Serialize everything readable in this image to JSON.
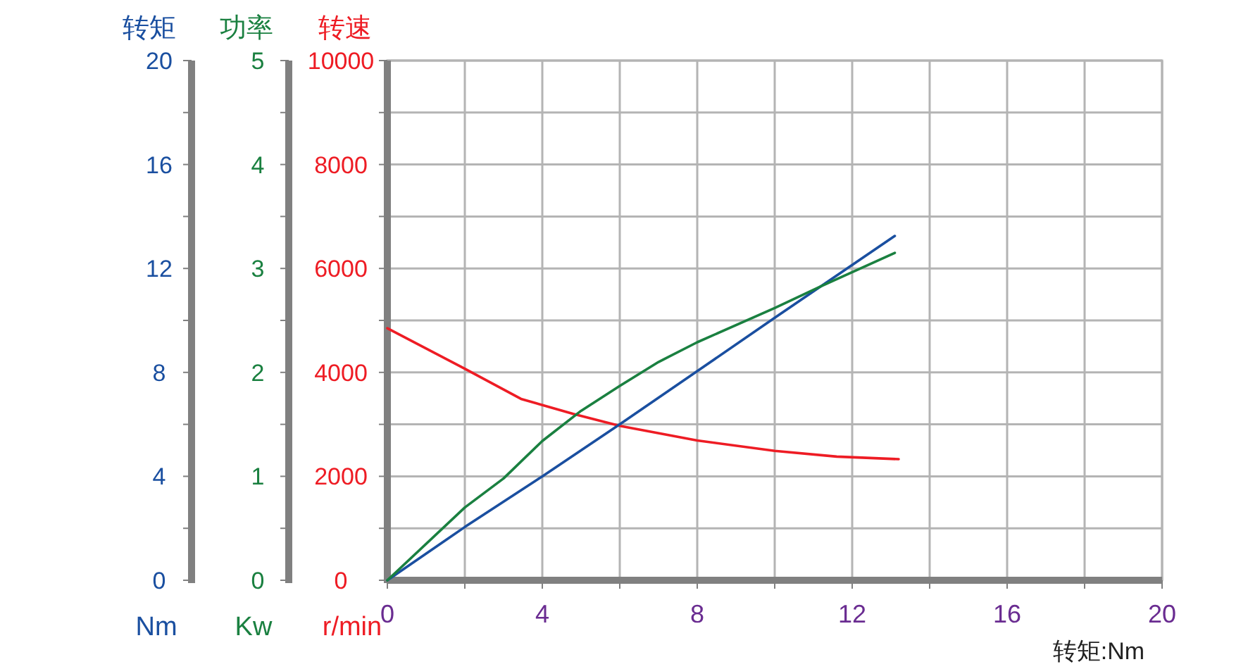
{
  "chart_data": {
    "type": "line",
    "xlabel": "转矩:Nm",
    "ylabel": "功率",
    "y2label": "转速",
    "y3label": "转矩",
    "annotations": [
      "Nm",
      "Kw",
      "r/min"
    ],
    "xlim": [
      0,
      20
    ],
    "xticks": [
      0,
      {
        "value": 2,
        "label": null
      },
      4,
      {
        "value": 6,
        "label": null
      },
      8,
      {
        "value": 10,
        "label": null
      },
      12,
      {
        "value": 14,
        "label": null
      },
      16,
      {
        "value": 18,
        "label": null
      },
      20
    ],
    "ylim": [
      0,
      5
    ],
    "yticks": [
      0,
      {
        "value": 0.5,
        "label": null
      },
      1,
      {
        "value": 1.5,
        "label": null
      },
      2,
      {
        "value": 2.5,
        "label": null
      },
      3,
      {
        "value": 3.5,
        "label": null
      },
      4,
      {
        "value": 4.5,
        "label": null
      },
      5
    ],
    "y2lim": [
      0,
      10000
    ],
    "y2ticks": [
      0,
      {
        "value": 1000,
        "label": null
      },
      2000,
      {
        "value": 3000,
        "label": null
      },
      4000,
      {
        "value": 5000,
        "label": null
      },
      6000,
      {
        "value": 7000,
        "label": null
      },
      8000,
      {
        "value": 9000,
        "label": null
      },
      10000
    ],
    "y3lim": [
      0,
      20
    ],
    "y3ticks": [
      0,
      {
        "value": 2,
        "label": null
      },
      4,
      {
        "value": 6,
        "label": null
      },
      8,
      {
        "value": 10,
        "label": null
      },
      12,
      {
        "value": 14,
        "label": null
      },
      16,
      {
        "value": 18,
        "label": null
      },
      20
    ],
    "grid": true,
    "marker": "none",
    "line_style": "solid",
    "series": [
      {
        "color": "#ee1c24",
        "axis": "y2",
        "x": [
          0,
          2,
          3.45,
          4.8,
          6,
          8,
          10,
          11.6,
          13.2
        ],
        "values": [
          4850,
          4070,
          3490,
          3200,
          2970,
          2690,
          2490,
          2380,
          2330
        ]
      },
      {
        "color": "#1a4fa0",
        "axis": "y3",
        "x": [
          0,
          2,
          4,
          6,
          8,
          10,
          13.1
        ],
        "values": [
          0,
          2.05,
          4,
          6,
          8.05,
          10.1,
          13.25
        ]
      },
      {
        "color": "#1a8040",
        "axis": "y",
        "x": [
          0,
          2,
          3,
          4,
          5,
          6,
          7,
          8,
          10,
          11.2,
          13.1
        ],
        "values": [
          0,
          0.7,
          0.98,
          1.34,
          1.63,
          1.87,
          2.1,
          2.29,
          2.62,
          2.83,
          3.15
        ]
      }
    ]
  }
}
